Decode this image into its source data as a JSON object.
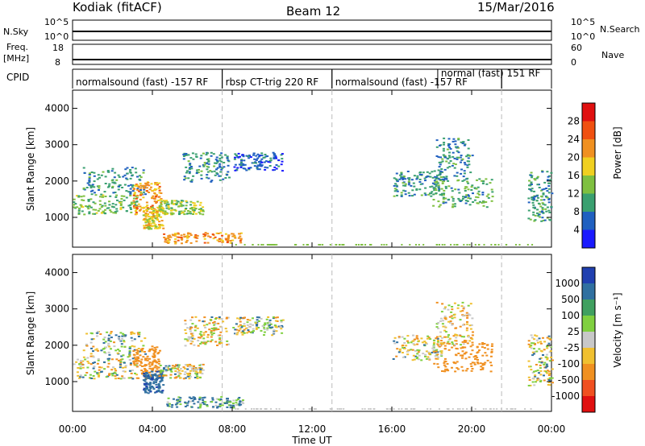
{
  "header": {
    "station": "Kodiak (fitACF)",
    "beam": "Beam 12",
    "date": "15/Mar/2016"
  },
  "left_labels": {
    "nsky": "N.Sky",
    "nsky_top": "10^5",
    "nsky_bottom": "10^0",
    "freq": "Freq.",
    "freq_unit": "[MHz]",
    "freq_top": "18",
    "freq_bottom": "8",
    "cpid": "CPID"
  },
  "right_labels": {
    "nsearch": "N.Search",
    "nsearch_top": "10^5",
    "nsearch_bottom": "10^0",
    "nave": "Nave",
    "nave_top": "60",
    "nave_bottom": "0"
  },
  "cpid_segments": [
    {
      "label": "normalsound (fast) -157 RF",
      "start": 0.0,
      "end": 7.5
    },
    {
      "label": "rbsp CT-trig 220 RF",
      "start": 7.5,
      "end": 13.0
    },
    {
      "label": "normalsound (fast) -157 RF",
      "start": 13.0,
      "end": 21.5
    },
    {
      "label": "normal (fast) 151 RF",
      "start": 18.3,
      "end": 21.5
    },
    {
      "label": "",
      "start": 21.5,
      "end": 24.0
    }
  ],
  "x_axis": {
    "label": "Time UT",
    "ticks": [
      "00:00",
      "04:00",
      "08:00",
      "12:00",
      "16:00",
      "20:00",
      "00:00"
    ]
  },
  "panels": {
    "power": {
      "ylabel": "Slant Range [km]",
      "yticks": [
        "1000",
        "2000",
        "3000",
        "4000"
      ],
      "colorbar_label": "Power [dB]",
      "colorbar_ticks": [
        "4",
        "8",
        "12",
        "16",
        "20",
        "24",
        "28"
      ]
    },
    "velocity": {
      "ylabel": "Slant Range [km]",
      "yticks": [
        "1000",
        "2000",
        "3000",
        "4000"
      ],
      "colorbar_label": "Velocity [m s⁻¹]",
      "colorbar_ticks": [
        "1000",
        "500",
        "100",
        "25",
        "-25",
        "-100",
        "-500",
        "-1000"
      ]
    }
  },
  "chart_data": {
    "type": "heatmap",
    "x_range_hours": [
      0,
      24
    ],
    "y_range_km": [
      180,
      4500
    ],
    "cpid_change_times_hours": [
      7.5,
      13.0,
      21.5
    ],
    "power_scale_db": [
      0,
      32
    ],
    "power_colors": [
      "#1a1aff",
      "#2060c0",
      "#3aa070",
      "#7fc040",
      "#f0d020",
      "#f09020",
      "#f05010",
      "#e01010"
    ],
    "velocity_colors": [
      "#2040b0",
      "#3070a0",
      "#40a060",
      "#80d040",
      "#c8c8c8",
      "#f0c030",
      "#f09020",
      "#f05020",
      "#e01010"
    ],
    "scatter_regions": [
      {
        "t0": 0.0,
        "t1": 3.2,
        "r0": 1100,
        "r1": 1650,
        "power_db": 13,
        "velocity": 0
      },
      {
        "t0": 0.5,
        "t1": 3.6,
        "r0": 1650,
        "r1": 2400,
        "power_db": 9,
        "velocity": 20
      },
      {
        "t0": 3.0,
        "t1": 4.4,
        "r0": 1100,
        "r1": 2000,
        "power_db": 22,
        "velocity": -300
      },
      {
        "t0": 3.5,
        "t1": 4.5,
        "r0": 700,
        "r1": 1300,
        "power_db": 18,
        "velocity": 400
      },
      {
        "t0": 4.3,
        "t1": 6.5,
        "r0": 1100,
        "r1": 1500,
        "power_db": 14,
        "velocity": 10
      },
      {
        "t0": 5.5,
        "t1": 7.8,
        "r0": 2000,
        "r1": 2800,
        "power_db": 9,
        "velocity": -40
      },
      {
        "t0": 4.5,
        "t1": 8.5,
        "r0": 300,
        "r1": 600,
        "power_db": 22,
        "velocity": 150
      },
      {
        "t0": 8.0,
        "t1": 10.5,
        "r0": 2300,
        "r1": 2800,
        "power_db": 6,
        "velocity": 0
      },
      {
        "t0": 16.0,
        "t1": 18.5,
        "r0": 1600,
        "r1": 2300,
        "power_db": 9,
        "velocity": 0
      },
      {
        "t0": 18.0,
        "t1": 21.0,
        "r0": 1300,
        "r1": 2100,
        "power_db": 11,
        "velocity": -350
      },
      {
        "t0": 18.2,
        "t1": 20.0,
        "r0": 2000,
        "r1": 3200,
        "power_db": 9,
        "velocity": -60
      },
      {
        "t0": 22.8,
        "t1": 24.0,
        "r0": 900,
        "r1": 2300,
        "power_db": 10,
        "velocity": 0
      }
    ]
  }
}
